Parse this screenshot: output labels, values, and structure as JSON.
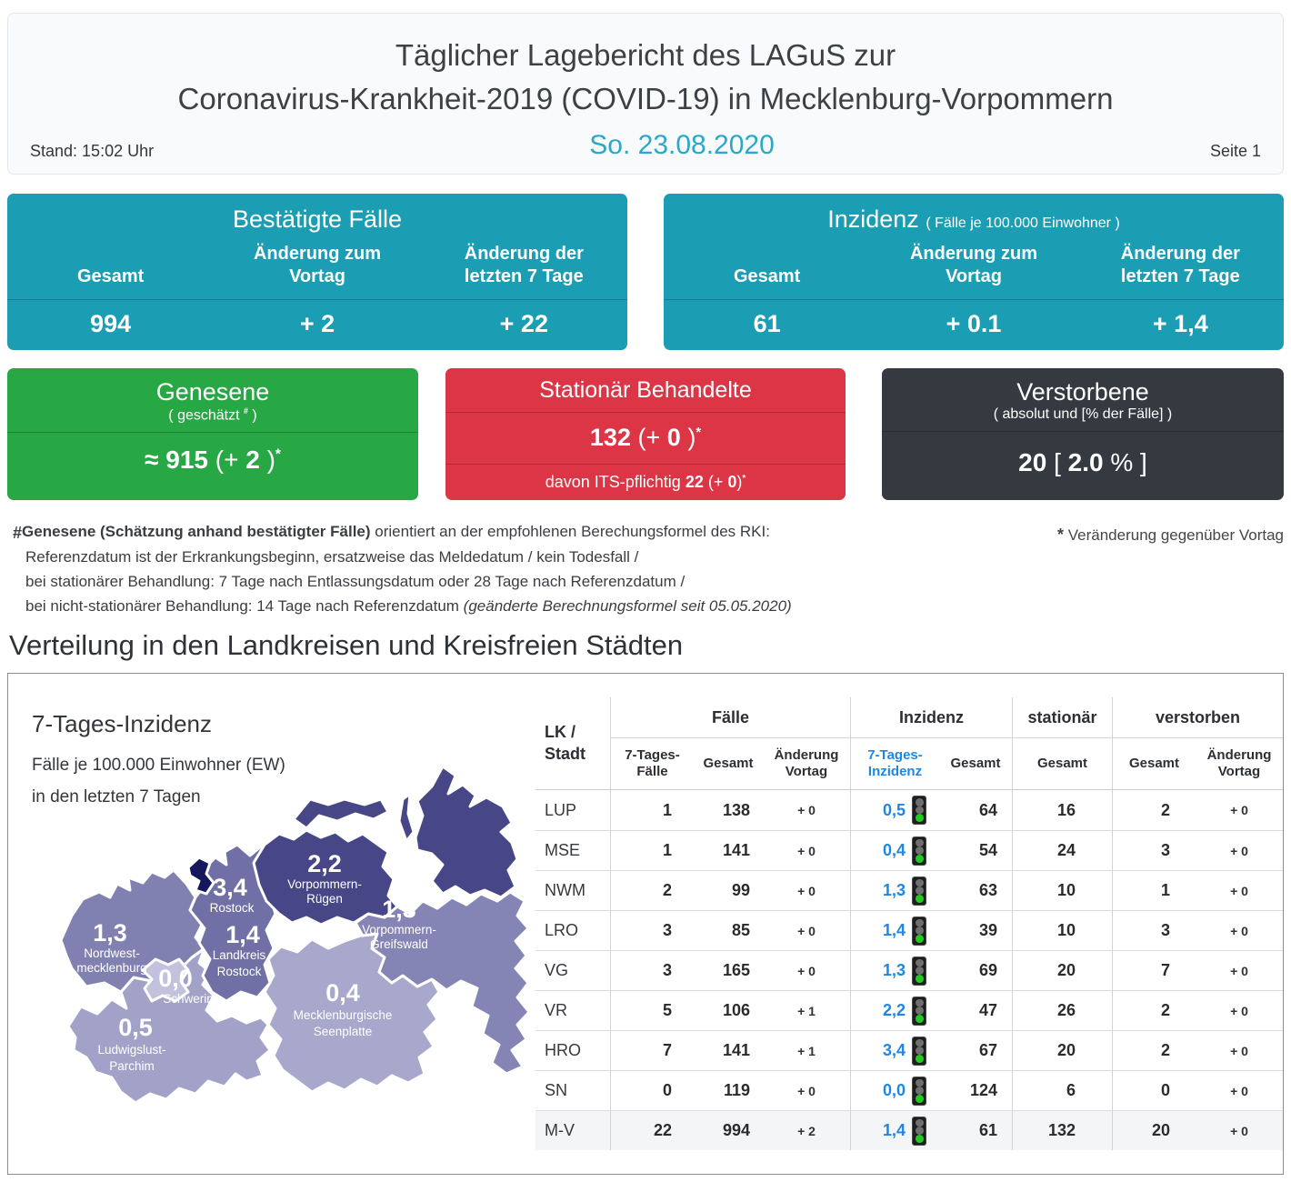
{
  "header": {
    "title_line1": "Täglicher Lagebericht des LAGuS zur",
    "title_line2": "Coronavirus-Krankheit-2019 (COVID-19) in Mecklenburg-Vorpommern",
    "stand": "Stand: 15:02 Uhr",
    "date": "So. 23.08.2020",
    "page": "Seite 1"
  },
  "colors": {
    "teal": "#1b9db3",
    "green": "#28a745",
    "red": "#dc3545",
    "dark": "#343a40",
    "date_teal": "#2ba7c7",
    "inzidenz_blue": "#1e87e5",
    "traffic_green": "#1ecb1e"
  },
  "cards": {
    "confirmed": {
      "title": "Bestätigte Fälle",
      "headers": [
        "Gesamt",
        "Änderung zum\nVortag",
        "Änderung der\nletzten 7 Tage"
      ],
      "values": [
        "994",
        "+ 2",
        "+ 22"
      ]
    },
    "incidence": {
      "title": "Inzidenz",
      "suffix": "( Fälle je 100.000 Einwohner )",
      "headers": [
        "Gesamt",
        "Änderung zum\nVortag",
        "Änderung der\nletzten 7 Tage"
      ],
      "values": [
        "61",
        "+ 0.1",
        "+ 1,4"
      ]
    },
    "recovered": {
      "title": "Genesene",
      "sub_pre": "( geschätzt",
      "sub_sup": "#",
      "sub_post": ")",
      "v1": "≈ 915",
      "v2": "(+",
      "v3": "2",
      "v4": ")",
      "star": "*"
    },
    "hospitalized": {
      "title": "Stationär Behandelte",
      "v1": "132",
      "v2": "(+",
      "v3": "0",
      "v4": ")",
      "star": "*",
      "s1": "davon ITS-pflichtig",
      "s2": "22",
      "s3": "(+",
      "s4": "0",
      "s5": ")",
      "s_star": "*"
    },
    "deceased": {
      "title": "Verstorbene",
      "subtitle": "( absolut und [% der Fälle] )",
      "v1": "20",
      "v2": "[",
      "v3": "2.0",
      "v4": "% ]"
    }
  },
  "footnotes": {
    "mark": "#",
    "line1_bold": "Genesene (Schätzung anhand bestätigter Fälle)",
    "line1_rest": " orientiert an der empfohlenen Berechungsformel des RKI:",
    "line2": "Referenzdatum ist der Erkrankungsbeginn, ersatzweise das Meldedatum / kein Todesfall /",
    "line3": "bei stationärer Behandlung: 7 Tage nach Entlassungsdatum oder 28 Tage nach Referenzdatum /",
    "line4_main": "bei nicht-stationärer Behandlung: 14 Tage nach Referenzdatum ",
    "line4_italic": "(geänderte Berechnungsformel seit 05.05.2020)",
    "right_star": "*",
    "right_text": " Veränderung gegenüber Vortag"
  },
  "section_title": "Verteilung in den Landkreisen und Kreisfreien Städten",
  "map": {
    "title": "7-Tages-Inzidenz",
    "subtitle1": "Fälle je 100.000 Einwohner (EW)",
    "subtitle2": "in den letzten 7 Tagen",
    "regions": [
      {
        "id": "vorpommern-ruegen",
        "value": "2,2",
        "name_line1": "Vorpommern-",
        "name_line2": "Rügen",
        "color": "#474787"
      },
      {
        "id": "rostock-stadt",
        "value": "3,4",
        "name_line1": "Rostock",
        "name_line2": "",
        "color": "#16165c"
      },
      {
        "id": "landkreis-rostock",
        "value": "1,4",
        "name_line1": "Landkreis",
        "name_line2": "Rostock",
        "color": "#7070a6"
      },
      {
        "id": "vorpommern-greifswald",
        "value": "1,3",
        "name_line1": "Vorpommern-",
        "name_line2": "Greifswald",
        "color": "#8585b5"
      },
      {
        "id": "nordwestmecklenburg",
        "value": "1,3",
        "name_line1": "Nordwest-",
        "name_line2": "mecklenburg",
        "color": "#8181b1"
      },
      {
        "id": "schwerin",
        "value": "0,0",
        "name_line1": "Schwerin",
        "name_line2": "",
        "color": "#c2c2dc"
      },
      {
        "id": "mecklenburgische-seenplatte",
        "value": "0,4",
        "name_line1": "Mecklenburgische",
        "name_line2": "Seenplatte",
        "color": "#a8a8cc"
      },
      {
        "id": "ludwigslust-parchim",
        "value": "0,5",
        "name_line1": "Ludwigslust-",
        "name_line2": "Parchim",
        "color": "#a2a2c9"
      }
    ]
  },
  "table": {
    "corner": "LK /\nStadt",
    "groups": [
      "Fälle",
      "Inzidenz",
      "stationär",
      "verstorben"
    ],
    "subheaders": [
      "7-Tages-\nFälle",
      "Gesamt",
      "Änderung\nVortag",
      "7-Tages-\nInzidenz",
      "Gesamt",
      "Gesamt",
      "Gesamt",
      "Änderung\nVortag"
    ],
    "rows": [
      {
        "label": "LUP",
        "cases7": "1",
        "casesTotal": "138",
        "casesDelta": "+ 0",
        "inc7": "0,5",
        "incTotal": "64",
        "hosp": "16",
        "deadTotal": "2",
        "deadDelta": "+ 0",
        "bold": false
      },
      {
        "label": "MSE",
        "cases7": "1",
        "casesTotal": "141",
        "casesDelta": "+ 0",
        "inc7": "0,4",
        "incTotal": "54",
        "hosp": "24",
        "deadTotal": "3",
        "deadDelta": "+ 0",
        "bold": false
      },
      {
        "label": "NWM",
        "cases7": "2",
        "casesTotal": "99",
        "casesDelta": "+ 0",
        "inc7": "1,3",
        "incTotal": "63",
        "hosp": "10",
        "deadTotal": "1",
        "deadDelta": "+ 0",
        "bold": false
      },
      {
        "label": "LRO",
        "cases7": "3",
        "casesTotal": "85",
        "casesDelta": "+ 0",
        "inc7": "1,4",
        "incTotal": "39",
        "hosp": "10",
        "deadTotal": "3",
        "deadDelta": "+ 0",
        "bold": false
      },
      {
        "label": "VG",
        "cases7": "3",
        "casesTotal": "165",
        "casesDelta": "+ 0",
        "inc7": "1,3",
        "incTotal": "69",
        "hosp": "20",
        "deadTotal": "7",
        "deadDelta": "+ 0",
        "bold": false
      },
      {
        "label": "VR",
        "cases7": "5",
        "casesTotal": "106",
        "casesDelta": "+ 1",
        "inc7": "2,2",
        "incTotal": "47",
        "hosp": "26",
        "deadTotal": "2",
        "deadDelta": "+ 0",
        "bold": false
      },
      {
        "label": "HRO",
        "cases7": "7",
        "casesTotal": "141",
        "casesDelta": "+ 1",
        "inc7": "3,4",
        "incTotal": "67",
        "hosp": "20",
        "deadTotal": "2",
        "deadDelta": "+ 0",
        "bold": false
      },
      {
        "label": "SN",
        "cases7": "0",
        "casesTotal": "119",
        "casesDelta": "+ 0",
        "inc7": "0,0",
        "incTotal": "124",
        "hosp": "6",
        "deadTotal": "0",
        "deadDelta": "+ 0",
        "bold": false
      },
      {
        "label": "M-V",
        "cases7": "22",
        "casesTotal": "994",
        "casesDelta": "+ 2",
        "inc7": "1,4",
        "incTotal": "61",
        "hosp": "132",
        "deadTotal": "20",
        "deadDelta": "+ 0",
        "bold": true
      }
    ]
  }
}
